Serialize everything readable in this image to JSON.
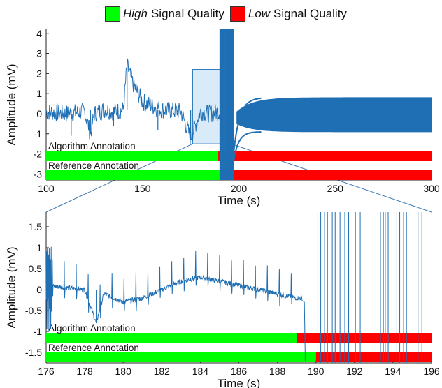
{
  "legend": {
    "high": {
      "em": "High",
      "text": "Signal Quality",
      "color": "#00ff00"
    },
    "low": {
      "em": "Low",
      "text": "Signal Quality",
      "color": "#ff0000"
    }
  },
  "colors": {
    "signal": "#1f6fb4",
    "zoom_box_fill": "#cfe6f6",
    "zoom_box_stroke": "#1f6fb4"
  },
  "chart_data": [
    {
      "type": "line",
      "xlabel": "Time (s)",
      "ylabel": "Amplitude (mV)",
      "xlim": [
        100,
        300
      ],
      "ylim": [
        -3.3,
        4.2
      ],
      "xticks": [
        100,
        150,
        200,
        250,
        300
      ],
      "yticks": [
        4,
        3,
        2,
        1,
        0,
        -1,
        -2,
        -3
      ],
      "series": [
        {
          "x": [
            100,
            110,
            120,
            123,
            125,
            130,
            135,
            140,
            142,
            145,
            150,
            160,
            170,
            175,
            180,
            185,
            190,
            191,
            195,
            198,
            200,
            205,
            210,
            220,
            240,
            270,
            300
          ],
          "y": [
            0.1,
            0.0,
            0.1,
            -1.0,
            0.0,
            0.2,
            0.1,
            0.2,
            2.4,
            1.5,
            0.6,
            0.2,
            0.1,
            -1.2,
            0.1,
            0.0,
            0.1,
            4.0,
            -3.3,
            -1.5,
            -0.5,
            0.0,
            0.2,
            0.6,
            0.8,
            0.8,
            0.8
          ]
        }
      ],
      "envelope_after_200": {
        "upper": 0.8,
        "lower": -0.9
      },
      "annotations": [
        {
          "label": "Algorithm Annotation",
          "segments": [
            {
              "x0": 100,
              "x1": 189,
              "quality": "high"
            },
            {
              "x0": 189,
              "x1": 300,
              "quality": "low"
            }
          ]
        },
        {
          "label": "Reference Annotation",
          "segments": [
            {
              "x0": 100,
              "x1": 190,
              "quality": "high"
            },
            {
              "x0": 190,
              "x1": 300,
              "quality": "low"
            }
          ]
        }
      ],
      "zoom_region": {
        "x0": 176,
        "x1": 196,
        "y0": -1.5,
        "y1": 2.2
      }
    },
    {
      "type": "line",
      "xlabel": "Time (s)",
      "ylabel": "Amplitude (mV)",
      "xlim": [
        176,
        196
      ],
      "ylim": [
        -1.75,
        1.85
      ],
      "xticks": [
        176,
        178,
        180,
        182,
        184,
        186,
        188,
        190,
        192,
        194,
        196
      ],
      "yticks": [
        1.5,
        1,
        0.5,
        0,
        -0.5,
        -1,
        -1.5
      ],
      "series": [
        {
          "x": [
            176,
            177,
            178,
            178.6,
            179,
            180,
            181,
            182,
            183,
            184,
            185,
            186,
            187,
            188,
            189,
            189.3,
            189.5
          ],
          "y": [
            0.1,
            0.05,
            0.0,
            -0.8,
            -0.1,
            -0.3,
            -0.2,
            0.0,
            0.2,
            0.3,
            0.2,
            0.1,
            0.0,
            -0.1,
            -0.2,
            -0.3,
            -1.7
          ]
        }
      ],
      "annotations": [
        {
          "label": "Algorithm Annotation",
          "segments": [
            {
              "x0": 176,
              "x1": 189,
              "quality": "high"
            },
            {
              "x0": 189,
              "x1": 196,
              "quality": "low"
            }
          ]
        },
        {
          "label": "Reference Annotation",
          "segments": [
            {
              "x0": 176,
              "x1": 190,
              "quality": "high"
            },
            {
              "x0": 190,
              "x1": 196,
              "quality": "low"
            }
          ]
        }
      ]
    }
  ]
}
